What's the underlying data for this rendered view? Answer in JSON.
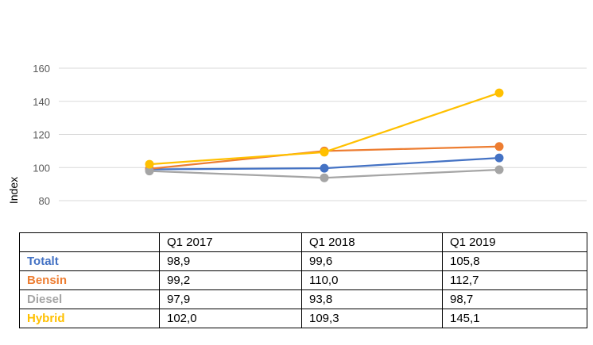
{
  "chart_data": {
    "type": "line",
    "categories": [
      "Q1 2017",
      "Q1 2018",
      "Q1 2019"
    ],
    "ylabel": "Index",
    "ylim": [
      80,
      160
    ],
    "yticks": [
      "80",
      "100",
      "120",
      "140",
      "160"
    ],
    "grid": true,
    "series": [
      {
        "name": "Totalt",
        "color": "#4472C4",
        "values": [
          98.9,
          99.6,
          105.8
        ],
        "labels": [
          "98,9",
          "99,6",
          "105,8"
        ]
      },
      {
        "name": "Bensin",
        "color": "#ED7D31",
        "values": [
          99.2,
          110.0,
          112.7
        ],
        "labels": [
          "99,2",
          "110,0",
          "112,7"
        ]
      },
      {
        "name": "Diesel",
        "color": "#A5A5A5",
        "values": [
          97.9,
          93.8,
          98.7
        ],
        "labels": [
          "97,9",
          "93,8",
          "98,7"
        ]
      },
      {
        "name": "Hybrid",
        "color": "#FFC000",
        "values": [
          102.0,
          109.3,
          145.1
        ],
        "labels": [
          "102,0",
          "109,3",
          "145,1"
        ]
      }
    ]
  }
}
